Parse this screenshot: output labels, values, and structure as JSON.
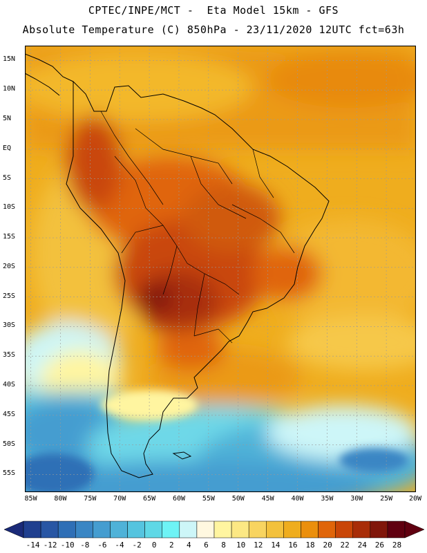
{
  "header": {
    "line1": "CPTEC/INPE/MCT -  Eta Model 15km - GFS",
    "line2": "Absolute Temperature (C) 850hPa - 23/11/2020 12UTC fct=63h"
  },
  "map": {
    "lat_labels": [
      "15N",
      "10N",
      "5N",
      "EQ",
      "5S",
      "10S",
      "15S",
      "20S",
      "25S",
      "30S",
      "35S",
      "40S",
      "45S",
      "50S",
      "55S"
    ],
    "lon_labels": [
      "85W",
      "80W",
      "75W",
      "70W",
      "65W",
      "60W",
      "55W",
      "50W",
      "45W",
      "40W",
      "35W",
      "30W",
      "25W",
      "20W"
    ]
  },
  "colorbar": {
    "labels": [
      "-14",
      "-12",
      "-10",
      "-8",
      "-6",
      "-4",
      "-2",
      "0",
      "2",
      "4",
      "6",
      "8",
      "10",
      "12",
      "14",
      "16",
      "18",
      "20",
      "22",
      "24",
      "26",
      "28"
    ],
    "colors": [
      "#1f3f8f",
      "#2856a4",
      "#2f6fb6",
      "#3a86c4",
      "#459dd0",
      "#4fb2d8",
      "#55c4df",
      "#5fd8e6",
      "#6ef3f5",
      "#cdf6f8",
      "#fff8e0",
      "#fff5a0",
      "#fce884",
      "#f8d460",
      "#f3c13c",
      "#efad1e",
      "#eb8f0c",
      "#e0650a",
      "#c94608",
      "#a82d08",
      "#80160a",
      "#600010"
    ],
    "under_color": "#1a2a78",
    "over_color": "#600010"
  }
}
